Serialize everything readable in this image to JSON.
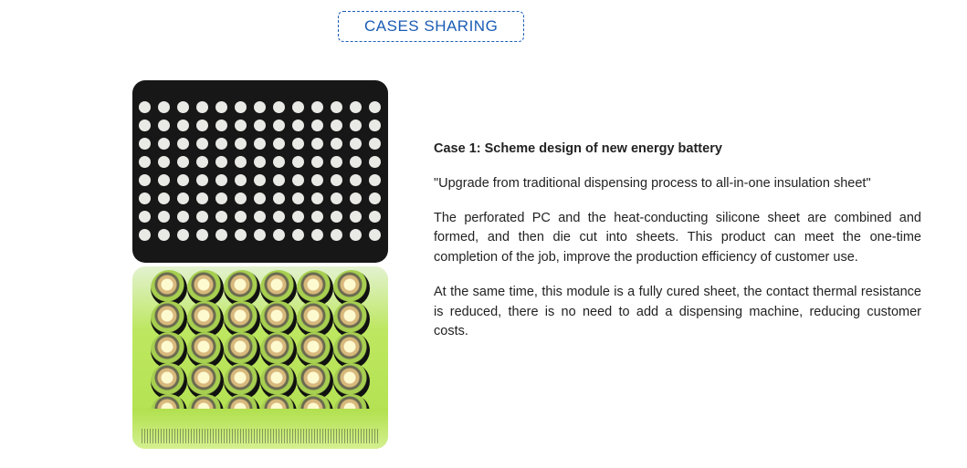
{
  "header": {
    "badge": "CASES SHARING"
  },
  "case": {
    "title_prefix": "Case 1:  ",
    "title": "Scheme design of new energy battery",
    "quote": "\"Upgrade from traditional dispensing process to all-in-one insulation sheet\"",
    "para1": "The perforated PC and the heat-conducting silicone sheet are combined and formed, and then die cut into sheets. This product can meet the one-time completion of the job, improve the production efficiency of customer use.",
    "para2": "At the same time, this module is a fully cured sheet, the contact thermal resistance is reduced, there is no need to add a dispensing machine, reducing customer costs."
  },
  "images": {
    "perforated": {
      "name": "perforated-insulation-sheet",
      "grid": {
        "cols": 13,
        "rows": 8,
        "dot_color": "#e9e9e5",
        "bg": "#171717"
      }
    },
    "battery": {
      "name": "battery-cell-pack",
      "grid": {
        "cols": 6,
        "rows": 5
      },
      "wrap_color": "#b1e04e"
    }
  },
  "colors": {
    "brand_blue": "#1a5db5",
    "text": "#222222",
    "bg": "#ffffff"
  }
}
